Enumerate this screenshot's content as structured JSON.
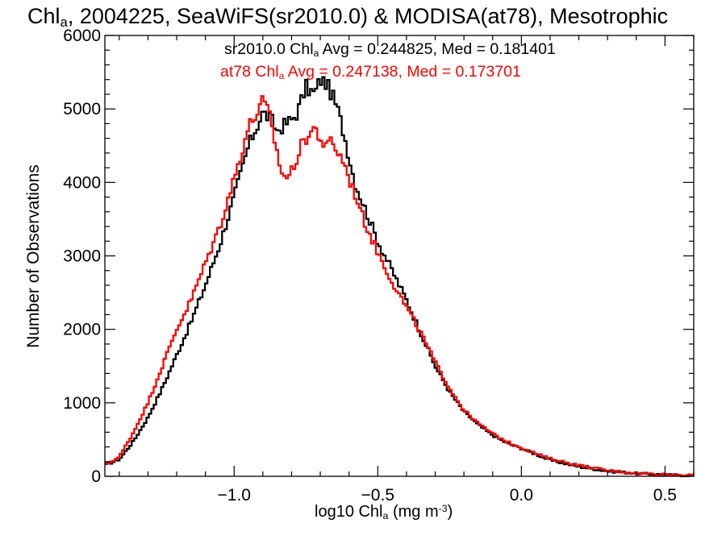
{
  "title": {
    "prefix": "Chl",
    "sub": "a",
    "rest": ", 2004225, SeaWiFS(sr2010.0) & MODISA(at78), Mesotrophic"
  },
  "stats": [
    {
      "prefix": "sr2010.0 Chl",
      "sub": "a",
      "rest": " Avg = 0.244825, Med = 0.181401",
      "color": "#000000"
    },
    {
      "prefix": "at78 Chl",
      "sub": "a",
      "rest": " Avg = 0.247138, Med = 0.173701",
      "color": "#ff0000"
    }
  ],
  "xlabel": {
    "prefix": "log10 Chl",
    "sub": "a",
    "mid": " (mg m",
    "sup": "-3",
    "suffix": ")"
  },
  "ylabel": "Number of Observations",
  "chart_data": {
    "type": "line",
    "style": "step-histogram",
    "xlim": [
      -1.45,
      0.6
    ],
    "ylim": [
      0,
      6000
    ],
    "x_major_ticks": [
      -1.0,
      -0.5,
      0.0,
      0.5
    ],
    "x_tick_labels": [
      "−1.0",
      "−0.5",
      "0.0",
      "0.5"
    ],
    "y_major_ticks": [
      0,
      1000,
      2000,
      3000,
      4000,
      5000,
      6000
    ],
    "y_tick_labels": [
      "0",
      "1000",
      "2000",
      "3000",
      "4000",
      "5000",
      "6000"
    ],
    "grid": false,
    "series": [
      {
        "name": "sr2010.0",
        "color": "#000000",
        "x": [
          -1.45,
          -1.4,
          -1.35,
          -1.3,
          -1.25,
          -1.2,
          -1.15,
          -1.1,
          -1.05,
          -1.0,
          -0.95,
          -0.9,
          -0.87,
          -0.85,
          -0.82,
          -0.8,
          -0.78,
          -0.75,
          -0.72,
          -0.7,
          -0.68,
          -0.66,
          -0.64,
          -0.62,
          -0.6,
          -0.58,
          -0.55,
          -0.5,
          -0.45,
          -0.4,
          -0.35,
          -0.3,
          -0.25,
          -0.2,
          -0.15,
          -0.1,
          -0.05,
          0.0,
          0.05,
          0.1,
          0.2,
          0.3,
          0.4,
          0.5,
          0.6
        ],
        "values": [
          150,
          230,
          480,
          800,
          1200,
          1650,
          2100,
          2600,
          3150,
          3800,
          4500,
          4950,
          4850,
          4700,
          4800,
          4850,
          4950,
          5300,
          5200,
          5400,
          5350,
          5200,
          5000,
          4700,
          4350,
          4000,
          3700,
          3200,
          2800,
          2400,
          1950,
          1500,
          1150,
          880,
          700,
          560,
          450,
          380,
          300,
          220,
          130,
          70,
          40,
          20,
          10
        ]
      },
      {
        "name": "at78",
        "color": "#ff0000",
        "x": [
          -1.45,
          -1.4,
          -1.35,
          -1.3,
          -1.25,
          -1.2,
          -1.15,
          -1.1,
          -1.05,
          -1.0,
          -0.95,
          -0.92,
          -0.9,
          -0.88,
          -0.86,
          -0.84,
          -0.82,
          -0.8,
          -0.78,
          -0.76,
          -0.74,
          -0.72,
          -0.7,
          -0.68,
          -0.66,
          -0.64,
          -0.62,
          -0.6,
          -0.57,
          -0.55,
          -0.5,
          -0.45,
          -0.4,
          -0.35,
          -0.3,
          -0.25,
          -0.2,
          -0.15,
          -0.1,
          -0.05,
          0.0,
          0.05,
          0.1,
          0.2,
          0.3,
          0.4,
          0.5,
          0.6
        ],
        "values": [
          160,
          260,
          600,
          1000,
          1500,
          2000,
          2400,
          2900,
          3400,
          4050,
          4750,
          4950,
          5100,
          4950,
          4600,
          4200,
          4050,
          4150,
          4350,
          4550,
          4650,
          4750,
          4600,
          4450,
          4600,
          4400,
          4300,
          4050,
          3750,
          3500,
          3050,
          2650,
          2300,
          1950,
          1550,
          1200,
          900,
          720,
          580,
          470,
          390,
          310,
          240,
          150,
          80,
          45,
          25,
          12
        ]
      }
    ]
  }
}
